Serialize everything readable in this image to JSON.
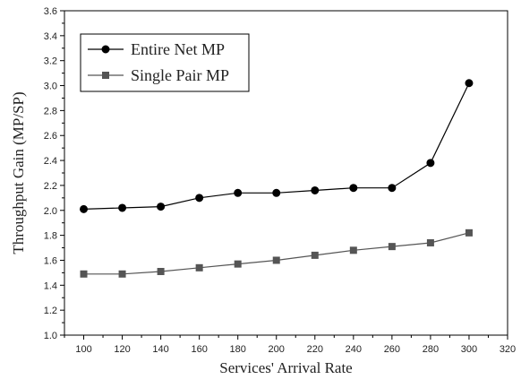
{
  "chart_data": {
    "type": "line",
    "title": "",
    "xlabel": "Services' Arrival Rate",
    "ylabel": "Throughput Gain (MP/SP)",
    "xlim": [
      90,
      320
    ],
    "ylim": [
      1.0,
      3.6
    ],
    "x_ticks": [
      100,
      120,
      140,
      160,
      180,
      200,
      220,
      240,
      260,
      280,
      300,
      320
    ],
    "y_ticks": [
      1.0,
      1.2,
      1.4,
      1.6,
      1.8,
      2.0,
      2.2,
      2.4,
      2.6,
      2.8,
      3.0,
      3.2,
      3.4,
      3.6
    ],
    "legend_position": "top-left",
    "grid": false,
    "x": [
      100,
      120,
      140,
      160,
      180,
      200,
      220,
      240,
      260,
      280,
      300
    ],
    "series": [
      {
        "name": "Entire Net MP",
        "marker": "circle",
        "color": "#000000",
        "values": [
          2.01,
          2.02,
          2.03,
          2.1,
          2.14,
          2.14,
          2.16,
          2.18,
          2.18,
          2.38,
          3.02
        ]
      },
      {
        "name": "Single Pair MP",
        "marker": "square",
        "color": "#555555",
        "values": [
          1.49,
          1.49,
          1.51,
          1.54,
          1.57,
          1.6,
          1.64,
          1.68,
          1.71,
          1.74,
          1.82
        ]
      }
    ]
  }
}
